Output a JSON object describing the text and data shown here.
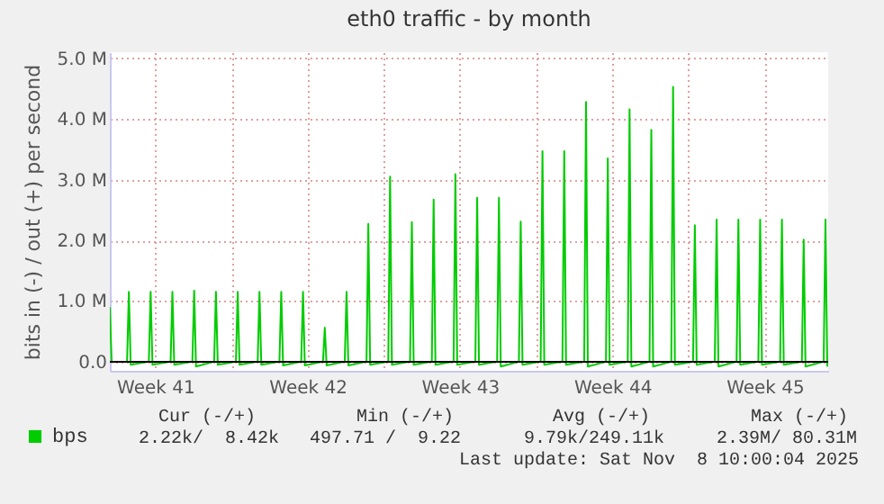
{
  "chart_data": {
    "type": "line",
    "title": "eth0 traffic - by month",
    "ylabel": "bits in (-) / out (+) per second",
    "x": [
      "2025-10-06T10:00",
      "2025-10-06T12:00",
      "2025-10-07T05:00",
      "2025-10-07T07:00",
      "2025-10-07T09:00",
      "2025-10-08T05:00",
      "2025-10-08T07:00",
      "2025-10-08T09:00",
      "2025-10-09T05:00",
      "2025-10-09T07:00",
      "2025-10-09T09:00",
      "2025-10-10T05:00",
      "2025-10-10T07:00",
      "2025-10-10T09:00",
      "2025-10-11T05:00",
      "2025-10-11T07:00",
      "2025-10-11T09:00",
      "2025-10-12T05:00",
      "2025-10-12T07:00",
      "2025-10-12T09:00",
      "2025-10-13T05:00",
      "2025-10-13T07:00",
      "2025-10-13T09:00",
      "2025-10-14T05:00",
      "2025-10-14T07:00",
      "2025-10-14T09:00",
      "2025-10-15T05:00",
      "2025-10-15T07:00",
      "2025-10-15T09:00",
      "2025-10-16T05:00",
      "2025-10-16T07:00",
      "2025-10-16T09:00",
      "2025-10-17T05:00",
      "2025-10-17T07:00",
      "2025-10-17T09:00",
      "2025-10-18T05:00",
      "2025-10-18T07:00",
      "2025-10-18T09:00",
      "2025-10-19T05:00",
      "2025-10-19T07:00",
      "2025-10-19T09:00",
      "2025-10-20T05:00",
      "2025-10-20T07:00",
      "2025-10-20T09:00",
      "2025-10-21T05:00",
      "2025-10-21T07:00",
      "2025-10-21T09:00",
      "2025-10-22T05:00",
      "2025-10-22T07:00",
      "2025-10-22T09:00",
      "2025-10-23T05:00",
      "2025-10-23T07:00",
      "2025-10-23T09:00",
      "2025-10-24T05:00",
      "2025-10-24T07:00",
      "2025-10-24T09:00",
      "2025-10-25T05:00",
      "2025-10-25T07:00",
      "2025-10-25T09:00",
      "2025-10-26T05:00",
      "2025-10-26T07:00",
      "2025-10-26T09:00",
      "2025-10-27T05:00",
      "2025-10-27T07:00",
      "2025-10-27T09:00",
      "2025-10-28T05:00",
      "2025-10-28T07:00",
      "2025-10-28T09:00",
      "2025-10-29T05:00",
      "2025-10-29T07:00",
      "2025-10-29T09:00",
      "2025-10-30T05:00",
      "2025-10-30T07:00",
      "2025-10-30T09:00",
      "2025-10-31T05:00",
      "2025-10-31T07:00",
      "2025-10-31T09:00",
      "2025-11-01T05:00",
      "2025-11-01T07:00",
      "2025-11-01T09:00",
      "2025-11-02T05:00",
      "2025-11-02T07:00",
      "2025-11-02T09:00",
      "2025-11-03T05:00",
      "2025-11-03T07:00",
      "2025-11-03T09:00",
      "2025-11-04T05:00",
      "2025-11-04T07:00",
      "2025-11-04T09:00",
      "2025-11-05T05:00",
      "2025-11-05T07:00",
      "2025-11-05T09:00",
      "2025-11-06T05:00",
      "2025-11-06T07:00",
      "2025-11-06T09:00",
      "2025-11-07T05:00",
      "2025-11-07T07:00",
      "2025-11-07T09:00",
      "2025-11-08T05:00",
      "2025-11-08T07:00",
      "2025-11-08T09:00"
    ],
    "series": [
      {
        "name": "bps",
        "color": "#00cc00",
        "values": [
          900000,
          0,
          0,
          1150000,
          -50000,
          0,
          1150000,
          -50000,
          0,
          1150000,
          -50000,
          0,
          1170000,
          -80000,
          0,
          1150000,
          -50000,
          0,
          1150000,
          -50000,
          0,
          1150000,
          -50000,
          0,
          1150000,
          -60000,
          0,
          1150000,
          -60000,
          0,
          560000,
          -60000,
          0,
          1150000,
          -60000,
          0,
          2270000,
          -50000,
          0,
          3050000,
          -50000,
          0,
          2300000,
          -50000,
          0,
          2670000,
          -50000,
          0,
          3090000,
          -50000,
          0,
          2700000,
          -50000,
          0,
          2700000,
          -80000,
          0,
          2310000,
          -50000,
          0,
          3470000,
          -50000,
          0,
          3470000,
          -50000,
          0,
          4280000,
          -80000,
          0,
          3350000,
          -50000,
          0,
          4160000,
          -80000,
          0,
          3820000,
          -80000,
          0,
          4530000,
          -50000,
          0,
          2250000,
          -50000,
          0,
          2340000,
          -80000,
          0,
          2340000,
          -50000,
          0,
          2340000,
          -50000,
          0,
          2340000,
          -50000,
          0,
          2010000,
          -80000,
          0,
          2340000,
          -80000
        ]
      }
    ],
    "xlim": [
      "2025-10-06T10:00",
      "2025-11-08T10:00"
    ],
    "xticks": [
      {
        "value": "2025-10-08T12:00",
        "label": "Week 41"
      },
      {
        "value": "2025-10-12T00:00",
        "label": null
      },
      {
        "value": "2025-10-15T12:00",
        "label": "Week 42"
      },
      {
        "value": "2025-10-19T00:00",
        "label": null
      },
      {
        "value": "2025-10-22T12:00",
        "label": "Week 43"
      },
      {
        "value": "2025-10-26T00:00",
        "label": null
      },
      {
        "value": "2025-10-29T12:00",
        "label": "Week 44"
      },
      {
        "value": "2025-11-02T00:00",
        "label": null
      },
      {
        "value": "2025-11-05T12:00",
        "label": "Week 45"
      }
    ],
    "ylim": [
      -150000,
      5100000
    ],
    "yticks": [
      {
        "value": 0,
        "label": "0.0"
      },
      {
        "value": 1000000,
        "label": "1.0 M"
      },
      {
        "value": 2000000,
        "label": "2.0 M"
      },
      {
        "value": 3000000,
        "label": "3.0 M"
      },
      {
        "value": 4000000,
        "label": "4.0 M"
      },
      {
        "value": 5000000,
        "label": "5.0 M"
      }
    ],
    "ref_lines": [
      {
        "axis": "y",
        "value": 0,
        "color": "#000000"
      }
    ],
    "grid": true,
    "legend": "bottom left",
    "annotations": [
      "Cur (-/+)",
      "Min (-/+)",
      "Avg (-/+)",
      "Max (-/+)",
      "2.22k/  8.42k",
      "497.71 /  9.22",
      "9.79k/249.11k",
      "2.39M/ 80.31M",
      "Last update: Sat Nov  8 10:00:04 2025"
    ]
  }
}
